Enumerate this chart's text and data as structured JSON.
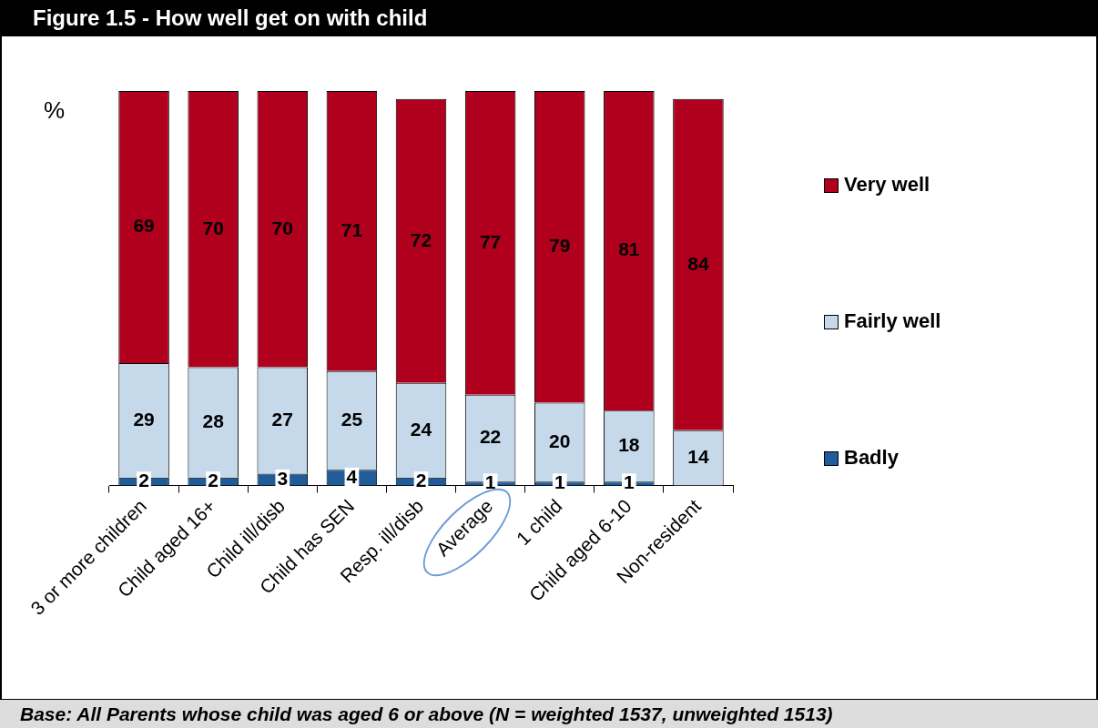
{
  "chart_data": {
    "type": "bar",
    "title": "Figure 1.5 - How well get on with child",
    "ylabel": "%",
    "annotations": [
      "Base: All Parents whose child was aged 6 or above (N = weighted 1537, unweighted 1513)"
    ],
    "categories": [
      "3 or more children",
      "Child aged 16+",
      "Child ill/disb",
      "Child has SEN",
      "Resp. ill/disb",
      "Average",
      "1 child",
      "Child aged 6-10",
      "Non-resident"
    ],
    "series": [
      {
        "name": "Badly",
        "color": "#1f5c99",
        "values": [
          2,
          2,
          3,
          4,
          2,
          1,
          1,
          1,
          null
        ]
      },
      {
        "name": "Fairly well",
        "color": "#c5d9ea",
        "values": [
          29,
          28,
          27,
          25,
          24,
          22,
          20,
          18,
          14
        ]
      },
      {
        "name": "Very well",
        "color": "#b0001e",
        "values": [
          69,
          70,
          70,
          71,
          72,
          77,
          79,
          81,
          84
        ]
      }
    ],
    "stacked": true,
    "ylim": [
      0,
      100
    ],
    "grid": false,
    "legend": "right",
    "tick_labels": "x",
    "data_labels": true
  }
}
